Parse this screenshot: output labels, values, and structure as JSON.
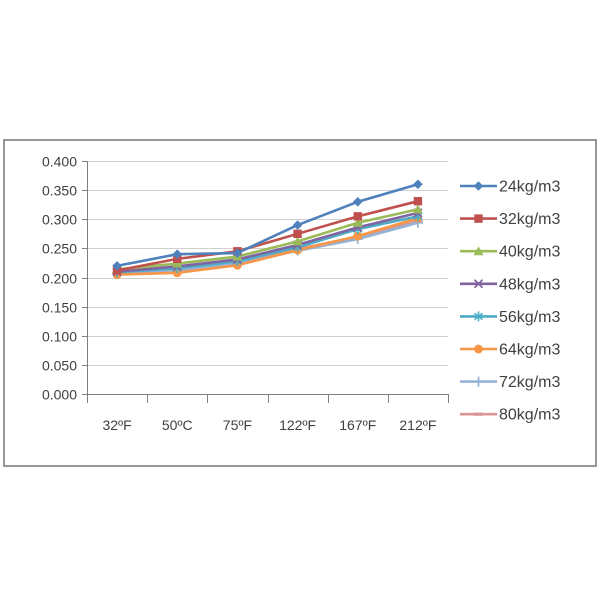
{
  "chart_data": {
    "type": "line",
    "title": "",
    "xlabel": "",
    "ylabel": "",
    "categories": [
      "32ºF",
      "50ºC",
      "75ºF",
      "122ºF",
      "167ºF",
      "212ºF"
    ],
    "y_ticks": [
      "0.400",
      "0.350",
      "0.300",
      "0.250",
      "0.200",
      "0.150",
      "0.100",
      "0.050",
      "0.000"
    ],
    "ylim": [
      0.0,
      0.4
    ],
    "y_step": 0.05,
    "grid": "horizontal",
    "legend_position": "right",
    "colors": {
      "text": "#404040",
      "gridline": "#d0d0d0",
      "axis": "#7f7f7f",
      "frame_border": "#969696"
    },
    "series": [
      {
        "name": "24kg/m3",
        "color": "#4F81BD",
        "marker": "diamond",
        "values": [
          0.22,
          0.24,
          0.242,
          0.29,
          0.33,
          0.36
        ]
      },
      {
        "name": "32kg/m3",
        "color": "#C0504D",
        "marker": "square",
        "values": [
          0.212,
          0.232,
          0.245,
          0.275,
          0.305,
          0.331
        ]
      },
      {
        "name": "40kg/m3",
        "color": "#9BBB59",
        "marker": "triangle",
        "values": [
          0.214,
          0.224,
          0.236,
          0.262,
          0.294,
          0.317
        ]
      },
      {
        "name": "48kg/m3",
        "color": "#8064A2",
        "marker": "x",
        "values": [
          0.21,
          0.219,
          0.231,
          0.256,
          0.286,
          0.311
        ]
      },
      {
        "name": "56kg/m3",
        "color": "#4BACC6",
        "marker": "asterisk",
        "values": [
          0.209,
          0.216,
          0.228,
          0.252,
          0.283,
          0.305
        ]
      },
      {
        "name": "64kg/m3",
        "color": "#F79646",
        "marker": "circle",
        "values": [
          0.205,
          0.208,
          0.221,
          0.247,
          0.271,
          0.302
        ]
      },
      {
        "name": "72kg/m3",
        "color": "#95B3D7",
        "marker": "plus",
        "values": [
          0.207,
          0.211,
          0.224,
          0.246,
          0.266,
          0.294
        ]
      },
      {
        "name": "80kg/m3",
        "color": "#D99694",
        "marker": "dash",
        "values": [
          0.208,
          0.214,
          0.226,
          0.249,
          0.27,
          0.297
        ]
      }
    ]
  }
}
